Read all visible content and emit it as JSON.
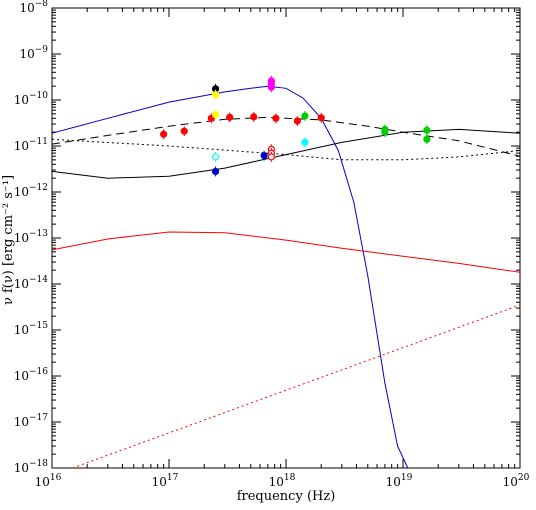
{
  "chart_data": {
    "type": "scatter",
    "xlabel": "frequency (Hz)",
    "ylabel": "ν f(ν)  [erg cm⁻² s⁻¹]",
    "xscale": "log",
    "yscale": "log",
    "xlim": [
      1e+16,
      1e+20
    ],
    "ylim": [
      1e-18,
      1e-08
    ],
    "x_ticks": [
      {
        "value": 1e+16,
        "mant": "10",
        "exp": "16"
      },
      {
        "value": 1e+17,
        "mant": "10",
        "exp": "17"
      },
      {
        "value": 1e+18,
        "mant": "10",
        "exp": "18"
      },
      {
        "value": 1e+19,
        "mant": "10",
        "exp": "19"
      },
      {
        "value": 1e+20,
        "mant": "10",
        "exp": "20"
      }
    ],
    "y_ticks": [
      {
        "value": 1e-08,
        "mant": "10",
        "exp": "−8"
      },
      {
        "value": 1e-09,
        "mant": "10",
        "exp": "−9"
      },
      {
        "value": 1e-10,
        "mant": "10",
        "exp": "−10"
      },
      {
        "value": 1e-11,
        "mant": "10",
        "exp": "−11"
      },
      {
        "value": 1e-12,
        "mant": "10",
        "exp": "−12"
      },
      {
        "value": 1e-13,
        "mant": "10",
        "exp": "−13"
      },
      {
        "value": 1e-14,
        "mant": "10",
        "exp": "−14"
      },
      {
        "value": 1e-15,
        "mant": "10",
        "exp": "−15"
      },
      {
        "value": 1e-16,
        "mant": "10",
        "exp": "−16"
      },
      {
        "value": 1e-17,
        "mant": "10",
        "exp": "−17"
      },
      {
        "value": 1e-18,
        "mant": "10",
        "exp": "−18"
      }
    ],
    "series": [
      {
        "color": "#0000cc",
        "style": "solid",
        "points": [
          [
            1e+16,
            1.9e-11
          ],
          [
            3e+16,
            4e-11
          ],
          [
            1e+17,
            9e-11
          ],
          [
            3e+17,
            1.5e-10
          ],
          [
            5e+17,
            1.8e-10
          ],
          [
            7e+17,
            2e-10
          ],
          [
            1e+18,
            1.8e-10
          ],
          [
            1.4e+18,
            1.1e-10
          ],
          [
            2e+18,
            4e-11
          ],
          [
            2.8e+18,
            8e-12
          ],
          [
            3.8e+18,
            6e-13
          ],
          [
            5e+18,
            1.5e-14
          ],
          [
            7e+18,
            7e-17
          ],
          [
            9e+18,
            3e-18
          ],
          [
            1.1e+19,
            1e-18
          ]
        ]
      },
      {
        "color": "#000000",
        "style": "solid",
        "points": [
          [
            1e+16,
            2.8e-12
          ],
          [
            3e+16,
            2e-12
          ],
          [
            1e+17,
            2.2e-12
          ],
          [
            3e+17,
            3.3e-12
          ],
          [
            1e+18,
            6.5e-12
          ],
          [
            3e+18,
            1.2e-11
          ],
          [
            1e+19,
            2e-11
          ],
          [
            3e+19,
            2.3e-11
          ],
          [
            1e+20,
            1.9e-11
          ]
        ]
      },
      {
        "color": "#000000",
        "style": "dashed",
        "points": [
          [
            1e+16,
            1.1e-11
          ],
          [
            3e+16,
            1.7e-11
          ],
          [
            1e+17,
            2.7e-11
          ],
          [
            3e+17,
            3.8e-11
          ],
          [
            7e+17,
            4.2e-11
          ],
          [
            1e+18,
            4e-11
          ],
          [
            2e+18,
            3.7e-11
          ],
          [
            5e+18,
            2.7e-11
          ],
          [
            1e+19,
            2e-11
          ],
          [
            3e+19,
            1.3e-11
          ],
          [
            1e+20,
            6e-12
          ]
        ]
      },
      {
        "color": "#000000",
        "style": "dotted",
        "points": [
          [
            1e+16,
            1.4e-11
          ],
          [
            1e+17,
            1e-11
          ],
          [
            1e+18,
            6.5e-12
          ],
          [
            3e+18,
            5e-12
          ],
          [
            1e+19,
            5e-12
          ],
          [
            3e+19,
            5.8e-12
          ],
          [
            1e+20,
            8e-12
          ]
        ]
      },
      {
        "color": "#ff0000",
        "style": "solid",
        "points": [
          [
            1e+16,
            5.5e-14
          ],
          [
            3e+16,
            9.5e-14
          ],
          [
            1e+17,
            1.35e-13
          ],
          [
            3e+17,
            1.3e-13
          ],
          [
            1e+18,
            9e-14
          ],
          [
            3e+18,
            6e-14
          ],
          [
            1e+19,
            4e-14
          ],
          [
            3e+19,
            2.8e-14
          ],
          [
            1e+20,
            1.8e-14
          ]
        ]
      },
      {
        "color": "#ff0000",
        "style": "dotted",
        "points": [
          [
            1.5e+16,
            1e-18
          ],
          [
            1e+20,
            3.5e-15
          ]
        ]
      }
    ],
    "points": [
      {
        "x": 9e+16,
        "y": 1.8e-11,
        "color": "#ff0000",
        "open": false
      },
      {
        "x": 1.35e+17,
        "y": 2.1e-11,
        "color": "#ff0000",
        "open": false
      },
      {
        "x": 2.3e+17,
        "y": 4e-11,
        "color": "#ff0000",
        "open": false
      },
      {
        "x": 3.3e+17,
        "y": 4.2e-11,
        "color": "#ff0000",
        "open": false
      },
      {
        "x": 5.3e+17,
        "y": 4.3e-11,
        "color": "#ff0000",
        "open": false
      },
      {
        "x": 8.2e+17,
        "y": 4e-11,
        "color": "#ff0000",
        "open": false
      },
      {
        "x": 1.25e+18,
        "y": 3.5e-11,
        "color": "#ff0000",
        "open": false
      },
      {
        "x": 2e+18,
        "y": 4.1e-11,
        "color": "#ff0000",
        "open": false
      },
      {
        "x": 7.5e+17,
        "y": 8.5e-12,
        "color": "#ff0000",
        "open": true
      },
      {
        "x": 7.5e+17,
        "y": 7e-12,
        "color": "#ff0000",
        "open": true
      },
      {
        "x": 7.5e+17,
        "y": 5.8e-12,
        "color": "#ff0000",
        "open": true
      },
      {
        "x": 2.5e+17,
        "y": 1.75e-10,
        "color": "#000000",
        "open": false
      },
      {
        "x": 2.5e+17,
        "y": 1.3e-10,
        "color": "#ffff00",
        "open": false
      },
      {
        "x": 2.5e+17,
        "y": 4.8e-11,
        "color": "#ffff00",
        "open": false
      },
      {
        "x": 7.5e+17,
        "y": 2.6e-10,
        "color": "#ff00ff",
        "open": false
      },
      {
        "x": 7.5e+17,
        "y": 2.2e-10,
        "color": "#ff00ff",
        "open": false
      },
      {
        "x": 7.5e+17,
        "y": 1.9e-10,
        "color": "#ff00ff",
        "open": false
      },
      {
        "x": 2.5e+17,
        "y": 5.8e-12,
        "color": "#00ffff",
        "open": true
      },
      {
        "x": 1.45e+18,
        "y": 1.2e-11,
        "color": "#00ffff",
        "open": false
      },
      {
        "x": 1.45e+18,
        "y": 4.5e-11,
        "color": "#00cc00",
        "open": false
      },
      {
        "x": 7e+18,
        "y": 2.3e-11,
        "color": "#00cc00",
        "open": false
      },
      {
        "x": 7e+18,
        "y": 2e-11,
        "color": "#00cc00",
        "open": false
      },
      {
        "x": 1.6e+19,
        "y": 2.2e-11,
        "color": "#00cc00",
        "open": false
      },
      {
        "x": 1.6e+19,
        "y": 1.4e-11,
        "color": "#00cc00",
        "open": false
      },
      {
        "x": 2.5e+17,
        "y": 2.8e-12,
        "color": "#0000cc",
        "open": false
      },
      {
        "x": 6.5e+17,
        "y": 6.2e-12,
        "color": "#0000cc",
        "open": false
      }
    ]
  }
}
